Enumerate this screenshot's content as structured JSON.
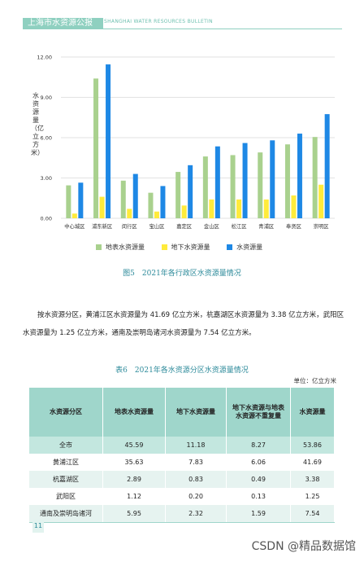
{
  "header": {
    "title": "上海市水资源公报",
    "subtitle": "SHANGHAI WATER RESOURCES BULLETIN"
  },
  "chart_data": {
    "type": "bar",
    "ylabel": "水资源量（亿立方米）",
    "ylim": [
      0,
      12
    ],
    "yticks": [
      "0.00",
      "3.00",
      "6.00",
      "9.00",
      "12.00"
    ],
    "grid": true,
    "legend_position": "bottom",
    "categories": [
      "中心城区",
      "浦东新区",
      "闵行区",
      "宝山区",
      "嘉定区",
      "金山区",
      "松江区",
      "青浦区",
      "奉贤区",
      "崇明区"
    ],
    "series": [
      {
        "name": "地表水资源量",
        "color": "#a9d18e",
        "values": [
          2.45,
          10.4,
          2.8,
          1.9,
          3.45,
          4.6,
          4.7,
          4.9,
          5.5,
          6.05
        ]
      },
      {
        "name": "地下水资源量",
        "color": "#ffeb3b",
        "values": [
          0.35,
          1.6,
          0.7,
          0.5,
          0.95,
          1.4,
          1.4,
          1.4,
          1.7,
          2.5
        ]
      },
      {
        "name": "水资源量",
        "color": "#1e88e5",
        "values": [
          2.65,
          11.45,
          3.3,
          2.4,
          3.95,
          5.35,
          5.6,
          5.8,
          6.3,
          7.75
        ]
      }
    ]
  },
  "figure_caption": "图5　2021年各行政区水资源量情况",
  "paragraph": "按水资源分区，黄浦江区水资源量为 41.69 亿立方米，杭嘉湖区水资源量为 3.38 亿立方米，武阳区水资源量为 1.25 亿立方米，通南及崇明岛诸河水资源量为 7.54 亿立方米。",
  "table": {
    "caption": "表6　2021年各水资源分区水资源量情况",
    "unit": "单位：亿立方米",
    "headers": [
      "水资源分区",
      "地表水资源量",
      "地下水资源量",
      "地下水资源与地表水资源不重复量",
      "水资源量"
    ],
    "rows": [
      [
        "全市",
        "45.59",
        "11.18",
        "8.27",
        "53.86"
      ],
      [
        "黄浦江区",
        "35.63",
        "7.83",
        "6.06",
        "41.69"
      ],
      [
        "杭嘉湖区",
        "2.89",
        "0.83",
        "0.49",
        "3.38"
      ],
      [
        "武阳区",
        "1.12",
        "0.20",
        "0.13",
        "1.25"
      ],
      [
        "通南及崇明岛诸河",
        "5.95",
        "2.32",
        "1.59",
        "7.54"
      ]
    ]
  },
  "page_number": "11",
  "watermark": "CSDN @精品数据馆"
}
